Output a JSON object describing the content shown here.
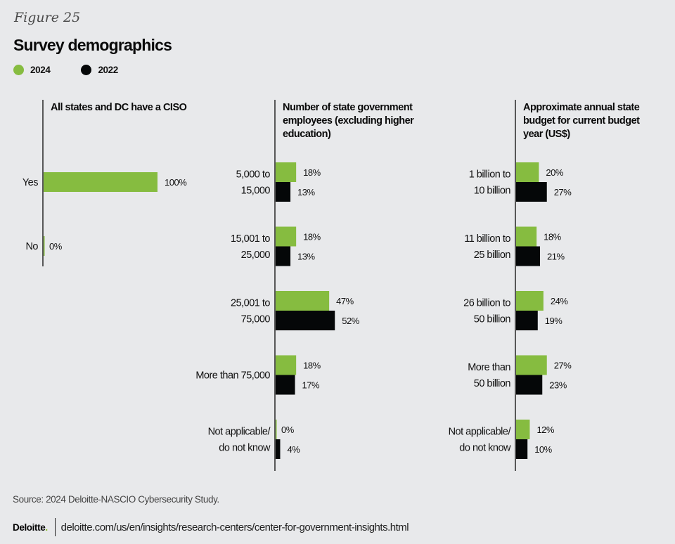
{
  "figure_label": "Figure 25",
  "title": "Survey demographics",
  "legend": [
    {
      "label": "2024",
      "color": "#86bc40"
    },
    {
      "label": "2022",
      "color": "#050708"
    }
  ],
  "chart_data": [
    {
      "type": "bar",
      "orientation": "horizontal",
      "title": "All states and DC have a CISO",
      "categories": [
        "Yes",
        "No"
      ],
      "series": [
        {
          "name": "2024",
          "values": [
            100,
            0
          ],
          "labels": [
            "100%",
            "0%"
          ]
        }
      ],
      "xlim": [
        0,
        100
      ],
      "grid": false,
      "legend": "top-left"
    },
    {
      "type": "bar",
      "orientation": "horizontal",
      "title": "Number of state government employees (excluding higher education)",
      "title_lines": [
        "Number of state government",
        "employees (excluding higher",
        "education)"
      ],
      "categories": [
        "5,000 to 15,000",
        "15,001 to 25,000",
        "25,001 to 75,000",
        "More than 75,000",
        "Not applicable/ do not know"
      ],
      "category_lines": [
        [
          "5,000 to",
          "15,000"
        ],
        [
          "15,001 to",
          "25,000"
        ],
        [
          "25,001 to",
          "75,000"
        ],
        [
          "More than 75,000"
        ],
        [
          "Not applicable/",
          "do not know"
        ]
      ],
      "series": [
        {
          "name": "2024",
          "values": [
            18,
            18,
            47,
            18,
            0
          ],
          "labels": [
            "18%",
            "18%",
            "47%",
            "18%",
            "0%"
          ]
        },
        {
          "name": "2022",
          "values": [
            13,
            13,
            52,
            17,
            4
          ],
          "labels": [
            "13%",
            "13%",
            "52%",
            "17%",
            "4%"
          ]
        }
      ],
      "xlim": [
        0,
        100
      ],
      "grid": false
    },
    {
      "type": "bar",
      "orientation": "horizontal",
      "title": "Approximate annual state budget for current budget year (US$)",
      "title_lines": [
        "Approximate annual state",
        "budget for current budget",
        "year (US$)"
      ],
      "categories": [
        "1 billion to 10 billion",
        "11 billion to 25 billion",
        "26 billion to 50 billion",
        "More than 50 billion",
        "Not applicable/ do not know"
      ],
      "category_lines": [
        [
          "1 billion to",
          "10 billion"
        ],
        [
          "11 billion to",
          "25 billion"
        ],
        [
          "26 billion to",
          "50 billion"
        ],
        [
          "More than",
          "50 billion"
        ],
        [
          "Not applicable/",
          "do not know"
        ]
      ],
      "series": [
        {
          "name": "2024",
          "values": [
            20,
            18,
            24,
            27,
            12
          ],
          "labels": [
            "20%",
            "18%",
            "24%",
            "27%",
            "12%"
          ]
        },
        {
          "name": "2022",
          "values": [
            27,
            21,
            19,
            23,
            10
          ],
          "labels": [
            "27%",
            "21%",
            "19%",
            "23%",
            "10%"
          ]
        }
      ],
      "xlim": [
        0,
        100
      ],
      "grid": false
    }
  ],
  "source": "Source: 2024 Deloitte-NASCIO Cybersecurity Study.",
  "footer": {
    "brand": "Deloitte",
    "brand_dot": ".",
    "url": "deloitte.com/us/en/insights/research-centers/center-for-government-insights.html"
  }
}
